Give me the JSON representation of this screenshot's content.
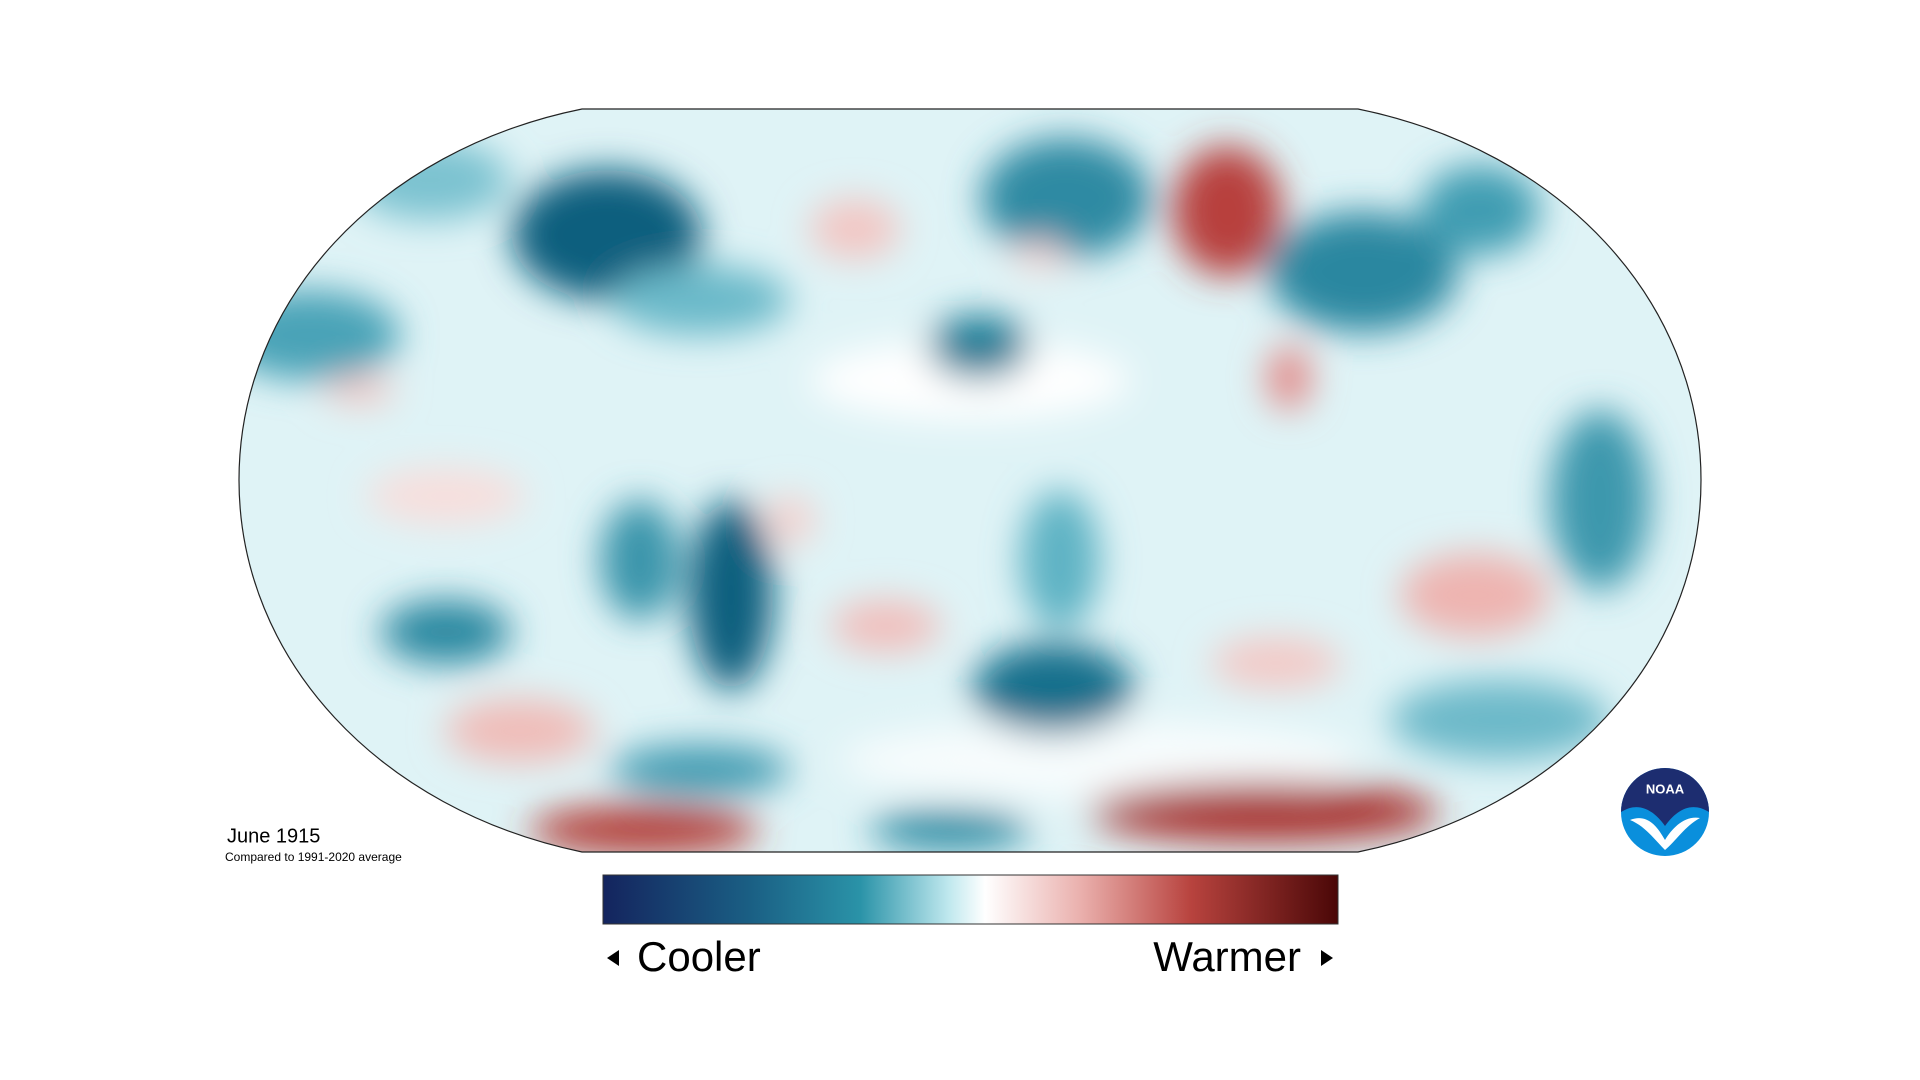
{
  "map": {
    "title": "June 1915",
    "subtitle": "Compared to 1991-2020 average",
    "legend": {
      "low_label": "Cooler",
      "high_label": "Warmer"
    },
    "logo": "NOAA"
  }
}
